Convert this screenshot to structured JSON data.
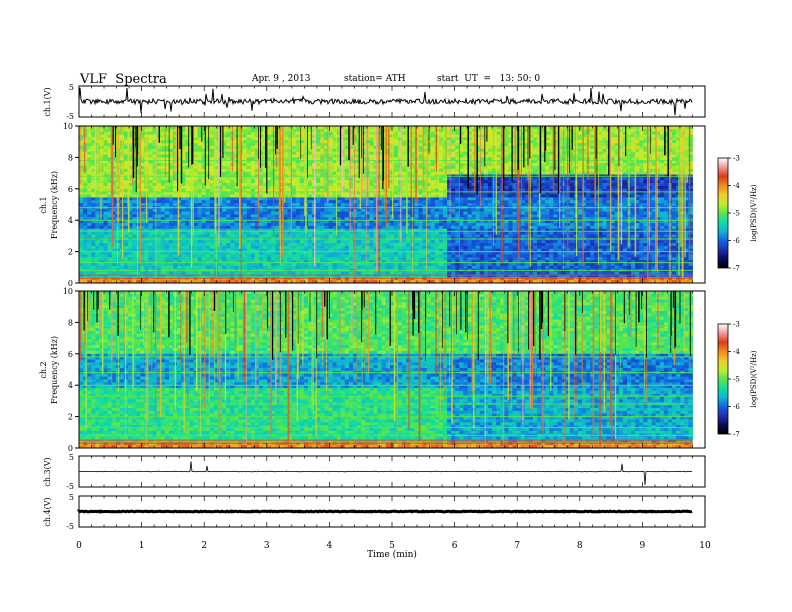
{
  "header": {
    "title": "VLF  Spectra",
    "date": "Apr. 9 , 2013",
    "station": "station= ATH",
    "start": "start  UT  =   13: 50: 0"
  },
  "colors": {
    "colormap": [
      "#000000",
      "#0a0a5a",
      "#1e2fb0",
      "#1463e6",
      "#11b4d2",
      "#12dca0",
      "#58e64c",
      "#c4ee2a",
      "#f0ca2a",
      "#f08a1e",
      "#dc3c18",
      "#f09a9a",
      "#ffffff"
    ]
  },
  "chart_data": [
    {
      "type": "line",
      "panel": "ch1-waveform",
      "ylabel": "ch.1(V)",
      "ylim": [
        -5,
        5
      ],
      "yticks": [
        "5",
        "-5"
      ],
      "series": [
        {
          "baseline": 0,
          "noise": "broadband with impulsive spikes"
        }
      ]
    },
    {
      "type": "heatmap",
      "panel": "ch1-spectrogram",
      "ylabel": "ch.1",
      "ylabel2": "Frequency  (kHz)",
      "ylim": [
        0,
        10
      ],
      "yticks": [
        "10",
        "8",
        "6",
        "4",
        "2",
        "0"
      ],
      "colorbar": {
        "label": "log(PSD)(V²/Hz)",
        "range": [
          -7,
          -3
        ],
        "ticks": [
          "-3",
          "-4",
          "-5",
          "-6",
          "-7"
        ]
      },
      "features": {
        "band_shift_time_min": 5.85
      }
    },
    {
      "type": "heatmap",
      "panel": "ch2-spectrogram",
      "ylabel": "ch.2",
      "ylabel2": "Frequency  (kHz)",
      "ylim": [
        0,
        10
      ],
      "yticks": [
        "10",
        "8",
        "6",
        "4",
        "2",
        "0"
      ],
      "colorbar": {
        "label": "log(PSD)(V²/Hz)",
        "range": [
          -7,
          -3
        ],
        "ticks": [
          "-3",
          "-4",
          "-5",
          "-6",
          "-7"
        ]
      },
      "features": {
        "band_shift_time_min": 5.85
      }
    },
    {
      "type": "line",
      "panel": "ch3-waveform",
      "ylabel": "ch.3(V)",
      "ylim": [
        -5,
        5
      ],
      "yticks": [
        "5",
        "-5"
      ],
      "series": [
        {
          "baseline": 0,
          "noise": "flat"
        }
      ]
    },
    {
      "type": "line",
      "panel": "ch4-waveform",
      "ylabel": "ch.4(V)",
      "ylim": [
        -5,
        5
      ],
      "yticks": [
        "5",
        "-5"
      ],
      "series": [
        {
          "baseline": 0,
          "noise": "thick constant trace"
        }
      ]
    }
  ],
  "xaxis": {
    "label": "Time  (min)",
    "range": [
      0,
      10
    ],
    "ticks": [
      "0",
      "1",
      "2",
      "3",
      "4",
      "5",
      "6",
      "7",
      "8",
      "9",
      "10"
    ],
    "data_end_min": 9.8
  }
}
